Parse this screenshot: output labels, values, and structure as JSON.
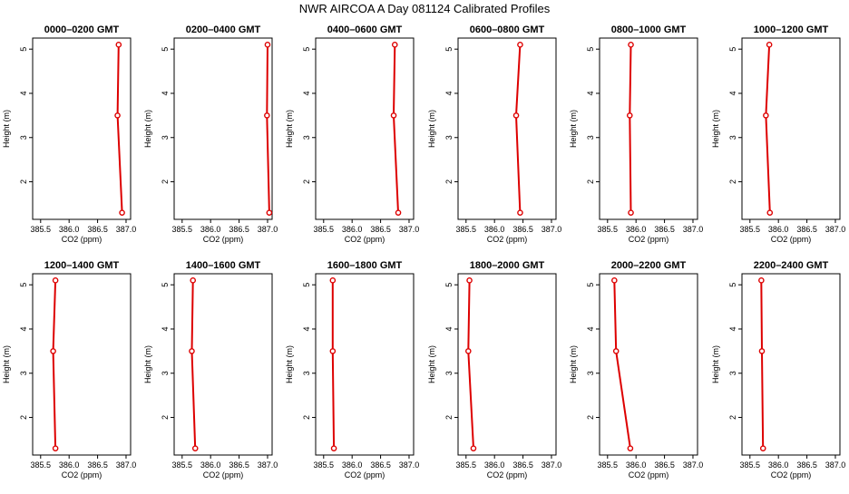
{
  "title": "NWR AIRCOA A  Day 081124  Calibrated Profiles",
  "colors": {
    "series": "#dd0000",
    "axis": "#000000",
    "background": "#ffffff"
  },
  "chart_data": [
    {
      "type": "line",
      "title": "0000–0200 GMT",
      "xlabel": "CO2 (ppm)",
      "ylabel": "Height (m)",
      "xlim": [
        385.5,
        387.0
      ],
      "ylim": [
        1.3,
        5.1
      ],
      "xticks": [
        "385.5",
        "386.0",
        "386.5",
        "387.0"
      ],
      "yticks": [
        "2",
        "3",
        "4",
        "5"
      ],
      "grid": false,
      "points": [
        {
          "x": 386.93,
          "y": 1.3
        },
        {
          "x": 386.85,
          "y": 3.5
        },
        {
          "x": 386.87,
          "y": 5.1
        }
      ]
    },
    {
      "type": "line",
      "title": "0200–0400 GMT",
      "xlabel": "CO2 (ppm)",
      "ylabel": "Height (m)",
      "xlim": [
        385.5,
        387.0
      ],
      "ylim": [
        1.3,
        5.1
      ],
      "xticks": [
        "385.5",
        "386.0",
        "386.5",
        "387.0"
      ],
      "yticks": [
        "2",
        "3",
        "4",
        "5"
      ],
      "grid": false,
      "points": [
        {
          "x": 387.03,
          "y": 1.3
        },
        {
          "x": 386.99,
          "y": 3.5
        },
        {
          "x": 387.0,
          "y": 5.1
        }
      ]
    },
    {
      "type": "line",
      "title": "0400–0600 GMT",
      "xlabel": "CO2 (ppm)",
      "ylabel": "Height (m)",
      "xlim": [
        385.5,
        387.0
      ],
      "ylim": [
        1.3,
        5.1
      ],
      "xticks": [
        "385.5",
        "386.0",
        "386.5",
        "387.0"
      ],
      "yticks": [
        "2",
        "3",
        "4",
        "5"
      ],
      "grid": false,
      "points": [
        {
          "x": 386.81,
          "y": 1.3
        },
        {
          "x": 386.73,
          "y": 3.5
        },
        {
          "x": 386.75,
          "y": 5.1
        }
      ]
    },
    {
      "type": "line",
      "title": "0600–0800 GMT",
      "xlabel": "CO2 (ppm)",
      "ylabel": "Height (m)",
      "xlim": [
        385.5,
        387.0
      ],
      "ylim": [
        1.3,
        5.1
      ],
      "xticks": [
        "385.5",
        "386.0",
        "386.5",
        "387.0"
      ],
      "yticks": [
        "2",
        "3",
        "4",
        "5"
      ],
      "grid": false,
      "points": [
        {
          "x": 386.45,
          "y": 1.3
        },
        {
          "x": 386.38,
          "y": 3.5
        },
        {
          "x": 386.45,
          "y": 5.1
        }
      ]
    },
    {
      "type": "line",
      "title": "0800–1000 GMT",
      "xlabel": "CO2 (ppm)",
      "ylabel": "Height (m)",
      "xlim": [
        385.5,
        387.0
      ],
      "ylim": [
        1.3,
        5.1
      ],
      "xticks": [
        "385.5",
        "386.0",
        "386.5",
        "387.0"
      ],
      "yticks": [
        "2",
        "3",
        "4",
        "5"
      ],
      "grid": false,
      "points": [
        {
          "x": 385.91,
          "y": 1.3
        },
        {
          "x": 385.89,
          "y": 3.5
        },
        {
          "x": 385.91,
          "y": 5.1
        }
      ]
    },
    {
      "type": "line",
      "title": "1000–1200 GMT",
      "xlabel": "CO2 (ppm)",
      "ylabel": "Height (m)",
      "xlim": [
        385.5,
        387.0
      ],
      "ylim": [
        1.3,
        5.1
      ],
      "xticks": [
        "385.5",
        "386.0",
        "386.5",
        "387.0"
      ],
      "yticks": [
        "2",
        "3",
        "4",
        "5"
      ],
      "grid": false,
      "points": [
        {
          "x": 385.85,
          "y": 1.3
        },
        {
          "x": 385.78,
          "y": 3.5
        },
        {
          "x": 385.84,
          "y": 5.1
        }
      ]
    },
    {
      "type": "line",
      "title": "1200–1400 GMT",
      "xlabel": "CO2 (ppm)",
      "ylabel": "Height (m)",
      "xlim": [
        385.5,
        387.0
      ],
      "ylim": [
        1.3,
        5.1
      ],
      "xticks": [
        "385.5",
        "386.0",
        "386.5",
        "387.0"
      ],
      "yticks": [
        "2",
        "3",
        "4",
        "5"
      ],
      "grid": false,
      "points": [
        {
          "x": 385.76,
          "y": 1.3
        },
        {
          "x": 385.72,
          "y": 3.5
        },
        {
          "x": 385.76,
          "y": 5.1
        }
      ]
    },
    {
      "type": "line",
      "title": "1400–1600 GMT",
      "xlabel": "CO2 (ppm)",
      "ylabel": "Height (m)",
      "xlim": [
        385.5,
        387.0
      ],
      "ylim": [
        1.3,
        5.1
      ],
      "xticks": [
        "385.5",
        "386.0",
        "386.5",
        "387.0"
      ],
      "yticks": [
        "2",
        "3",
        "4",
        "5"
      ],
      "grid": false,
      "points": [
        {
          "x": 385.73,
          "y": 1.3
        },
        {
          "x": 385.67,
          "y": 3.5
        },
        {
          "x": 385.69,
          "y": 5.1
        }
      ]
    },
    {
      "type": "line",
      "title": "1600–1800 GMT",
      "xlabel": "CO2 (ppm)",
      "ylabel": "Height (m)",
      "xlim": [
        385.5,
        387.0
      ],
      "ylim": [
        1.3,
        5.1
      ],
      "xticks": [
        "385.5",
        "386.0",
        "386.5",
        "387.0"
      ],
      "yticks": [
        "2",
        "3",
        "4",
        "5"
      ],
      "grid": false,
      "points": [
        {
          "x": 385.68,
          "y": 1.3
        },
        {
          "x": 385.66,
          "y": 3.5
        },
        {
          "x": 385.66,
          "y": 5.1
        }
      ]
    },
    {
      "type": "line",
      "title": "1800–2000 GMT",
      "xlabel": "CO2 (ppm)",
      "ylabel": "Height (m)",
      "xlim": [
        385.5,
        387.0
      ],
      "ylim": [
        1.3,
        5.1
      ],
      "xticks": [
        "385.5",
        "386.0",
        "386.5",
        "387.0"
      ],
      "yticks": [
        "2",
        "3",
        "4",
        "5"
      ],
      "grid": false,
      "points": [
        {
          "x": 385.63,
          "y": 1.3
        },
        {
          "x": 385.54,
          "y": 3.5
        },
        {
          "x": 385.56,
          "y": 5.1
        }
      ]
    },
    {
      "type": "line",
      "title": "2000–2200 GMT",
      "xlabel": "CO2 (ppm)",
      "ylabel": "Height (m)",
      "xlim": [
        385.5,
        387.0
      ],
      "ylim": [
        1.3,
        5.1
      ],
      "xticks": [
        "385.5",
        "386.0",
        "386.5",
        "387.0"
      ],
      "yticks": [
        "2",
        "3",
        "4",
        "5"
      ],
      "grid": false,
      "points": [
        {
          "x": 385.9,
          "y": 1.3
        },
        {
          "x": 385.65,
          "y": 3.5
        },
        {
          "x": 385.62,
          "y": 5.1
        }
      ]
    },
    {
      "type": "line",
      "title": "2200–2400 GMT",
      "xlabel": "CO2 (ppm)",
      "ylabel": "Height (m)",
      "xlim": [
        385.5,
        387.0
      ],
      "ylim": [
        1.3,
        5.1
      ],
      "xticks": [
        "385.5",
        "386.0",
        "386.5",
        "387.0"
      ],
      "yticks": [
        "2",
        "3",
        "4",
        "5"
      ],
      "grid": false,
      "points": [
        {
          "x": 385.73,
          "y": 1.3
        },
        {
          "x": 385.71,
          "y": 3.5
        },
        {
          "x": 385.7,
          "y": 5.1
        }
      ]
    }
  ]
}
